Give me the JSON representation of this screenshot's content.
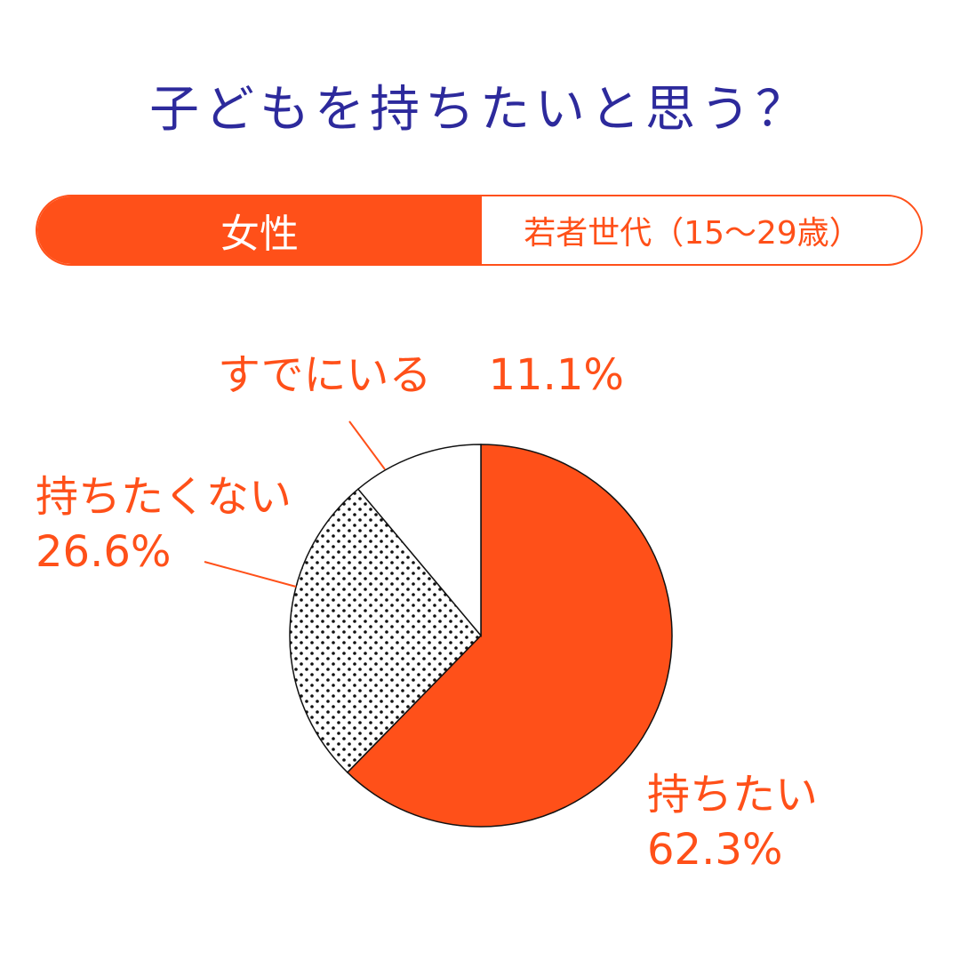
{
  "title": "子どもを持ちたいと思う？",
  "tag": {
    "gender": "女性",
    "age_group": "若者世代（15〜29歳）"
  },
  "colors": {
    "accent": "#ff5019",
    "title": "#2d2a9c",
    "outline": "#111111"
  },
  "chart_data": {
    "type": "pie",
    "slices": [
      {
        "label": "持ちたい",
        "value": 62.3,
        "value_label": "62.3%",
        "fill": "solid-orange"
      },
      {
        "label": "持ちたくない",
        "value": 26.6,
        "value_label": "26.6%",
        "fill": "dotted"
      },
      {
        "label": "すでにいる",
        "value": 11.1,
        "value_label": "11.1%",
        "fill": "white"
      }
    ],
    "start_angle": "12 o'clock",
    "direction": "clockwise"
  }
}
